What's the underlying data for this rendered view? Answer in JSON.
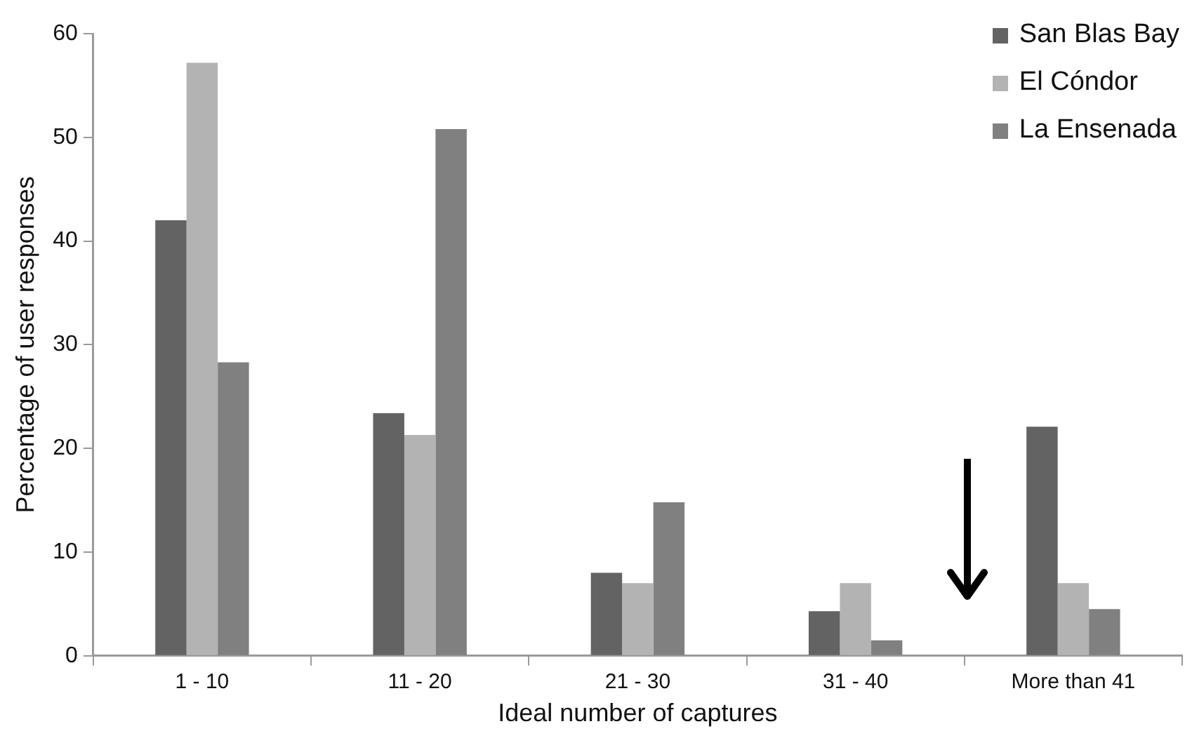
{
  "chart_data": {
    "type": "bar",
    "xlabel": "Ideal number of captures",
    "ylabel": "Percentage of user responses",
    "categories": [
      "1 - 10",
      "11 - 20",
      "21 - 30",
      "31 - 40",
      "More than 41"
    ],
    "series": [
      {
        "name": "San Blas Bay",
        "color": "#636363",
        "values": [
          42,
          23.4,
          8,
          4.3,
          22.1
        ]
      },
      {
        "name": "El Cóndor",
        "color": "#b3b3b3",
        "values": [
          57.2,
          21.3,
          7,
          7,
          7
        ]
      },
      {
        "name": "La Ensenada",
        "color": "#808080",
        "values": [
          28.3,
          50.8,
          14.8,
          1.5,
          4.5
        ]
      }
    ],
    "ylim": [
      0,
      60
    ],
    "yticks": [
      0,
      10,
      20,
      30,
      40,
      50,
      60
    ],
    "grid": false,
    "legend": "top right"
  }
}
